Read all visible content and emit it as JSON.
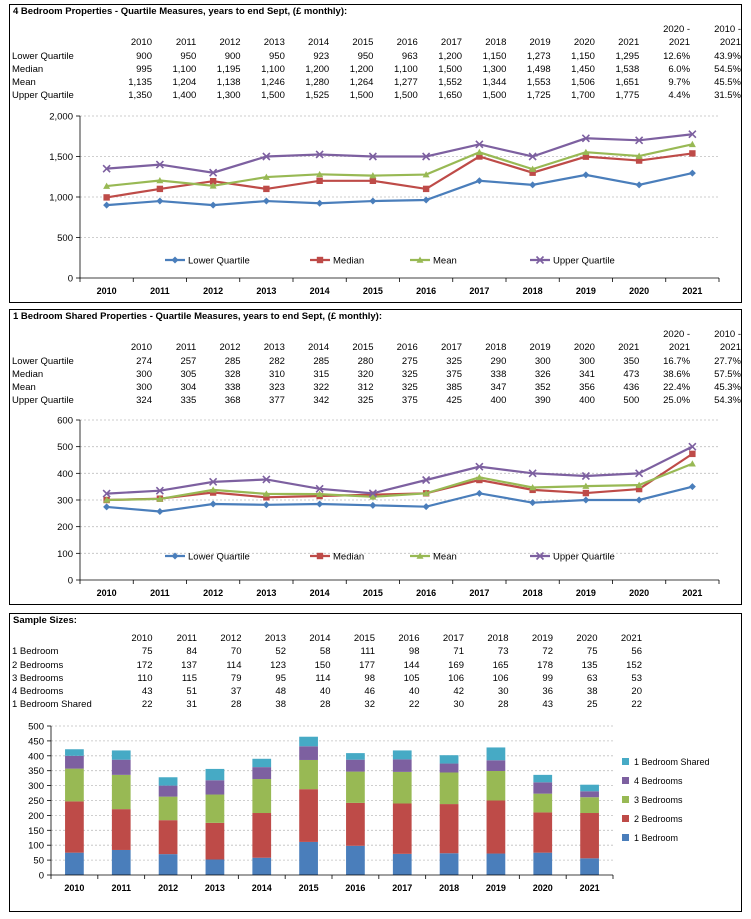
{
  "panels": [
    {
      "title": "4 Bedroom Properties - Quartile Measures, years to end Sept, (£ monthly):",
      "header_top": [
        "",
        "",
        "",
        "",
        "",
        "",
        "",
        "",
        "",
        "",
        "",
        "",
        "",
        "2020 -",
        "2010 -"
      ],
      "header": [
        "",
        "2010",
        "2011",
        "2012",
        "2013",
        "2014",
        "2015",
        "2016",
        "2017",
        "2018",
        "2019",
        "2020",
        "2021",
        "2021",
        "2021"
      ],
      "rows": [
        [
          "Lower Quartile",
          "900",
          "950",
          "900",
          "950",
          "923",
          "950",
          "963",
          "1,200",
          "1,150",
          "1,273",
          "1,150",
          "1,295",
          "12.6%",
          "43.9%"
        ],
        [
          "Median",
          "995",
          "1,100",
          "1,195",
          "1,100",
          "1,200",
          "1,200",
          "1,100",
          "1,500",
          "1,300",
          "1,498",
          "1,450",
          "1,538",
          "6.0%",
          "54.5%"
        ],
        [
          "Mean",
          "1,135",
          "1,204",
          "1,138",
          "1,246",
          "1,280",
          "1,264",
          "1,277",
          "1,552",
          "1,344",
          "1,553",
          "1,506",
          "1,651",
          "9.7%",
          "45.5%"
        ],
        [
          "Upper Quartile",
          "1,350",
          "1,400",
          "1,300",
          "1,500",
          "1,525",
          "1,500",
          "1,500",
          "1,650",
          "1,500",
          "1,725",
          "1,700",
          "1,775",
          "4.4%",
          "31.5%"
        ]
      ]
    },
    {
      "title": "1 Bedroom Shared Properties - Quartile Measures, years to end Sept, (£ monthly):",
      "header_top": [
        "",
        "",
        "",
        "",
        "",
        "",
        "",
        "",
        "",
        "",
        "",
        "",
        "",
        "2020 -",
        "2010 -"
      ],
      "header": [
        "",
        "2010",
        "2011",
        "2012",
        "2013",
        "2014",
        "2015",
        "2016",
        "2017",
        "2018",
        "2019",
        "2020",
        "2021",
        "2021",
        "2021"
      ],
      "rows": [
        [
          "Lower Quartile",
          "274",
          "257",
          "285",
          "282",
          "285",
          "280",
          "275",
          "325",
          "290",
          "300",
          "300",
          "350",
          "16.7%",
          "27.7%"
        ],
        [
          "Median",
          "300",
          "305",
          "328",
          "310",
          "315",
          "320",
          "325",
          "375",
          "338",
          "326",
          "341",
          "473",
          "38.6%",
          "57.5%"
        ],
        [
          "Mean",
          "300",
          "304",
          "338",
          "323",
          "322",
          "312",
          "325",
          "385",
          "347",
          "352",
          "356",
          "436",
          "22.4%",
          "45.3%"
        ],
        [
          "Upper Quartile",
          "324",
          "335",
          "368",
          "377",
          "342",
          "325",
          "375",
          "425",
          "400",
          "390",
          "400",
          "500",
          "25.0%",
          "54.3%"
        ]
      ]
    },
    {
      "title": "Sample Sizes:",
      "header": [
        "",
        "2010",
        "2011",
        "2012",
        "2013",
        "2014",
        "2015",
        "2016",
        "2017",
        "2018",
        "2019",
        "2020",
        "2021"
      ],
      "rows": [
        [
          "1 Bedroom",
          "75",
          "84",
          "70",
          "52",
          "58",
          "111",
          "98",
          "71",
          "73",
          "72",
          "75",
          "56"
        ],
        [
          "2 Bedrooms",
          "172",
          "137",
          "114",
          "123",
          "150",
          "177",
          "144",
          "169",
          "165",
          "178",
          "135",
          "152"
        ],
        [
          "3 Bedrooms",
          "110",
          "115",
          "79",
          "95",
          "114",
          "98",
          "105",
          "106",
          "106",
          "99",
          "63",
          "53"
        ],
        [
          "4 Bedrooms",
          "43",
          "51",
          "37",
          "48",
          "40",
          "46",
          "40",
          "42",
          "30",
          "36",
          "38",
          "20"
        ],
        [
          "1 Bedroom Shared",
          "22",
          "31",
          "28",
          "38",
          "28",
          "32",
          "22",
          "30",
          "28",
          "43",
          "25",
          "22"
        ]
      ]
    }
  ],
  "chart_data": [
    {
      "type": "line",
      "categories": [
        "2010",
        "2011",
        "2012",
        "2013",
        "2014",
        "2015",
        "2016",
        "2017",
        "2018",
        "2019",
        "2020",
        "2021"
      ],
      "ylim": [
        0,
        2000
      ],
      "yticks": [
        "0",
        "500",
        "1,000",
        "1,500",
        "2,000"
      ],
      "ytick_values": [
        0,
        500,
        1000,
        1500,
        2000
      ],
      "grid": true,
      "legend_position": "bottom-inside",
      "series": [
        {
          "name": "Lower Quartile",
          "color": "#4a7ebb",
          "marker": "diamond",
          "values": [
            900,
            950,
            900,
            950,
            923,
            950,
            963,
            1200,
            1150,
            1273,
            1150,
            1295
          ]
        },
        {
          "name": "Median",
          "color": "#be4b48",
          "marker": "square",
          "values": [
            995,
            1100,
            1195,
            1100,
            1200,
            1200,
            1100,
            1500,
            1300,
            1498,
            1450,
            1538
          ]
        },
        {
          "name": "Mean",
          "color": "#98b954",
          "marker": "triangle",
          "values": [
            1135,
            1204,
            1138,
            1246,
            1280,
            1264,
            1277,
            1552,
            1344,
            1553,
            1506,
            1651
          ]
        },
        {
          "name": "Upper Quartile",
          "color": "#7d60a0",
          "marker": "x",
          "values": [
            1350,
            1400,
            1300,
            1500,
            1525,
            1500,
            1500,
            1650,
            1500,
            1725,
            1700,
            1775
          ]
        }
      ]
    },
    {
      "type": "line",
      "categories": [
        "2010",
        "2011",
        "2012",
        "2013",
        "2014",
        "2015",
        "2016",
        "2017",
        "2018",
        "2019",
        "2020",
        "2021"
      ],
      "ylim": [
        0,
        600
      ],
      "yticks": [
        "0",
        "100",
        "200",
        "300",
        "400",
        "500",
        "600"
      ],
      "ytick_values": [
        0,
        100,
        200,
        300,
        400,
        500,
        600
      ],
      "grid": true,
      "legend_position": "bottom-inside",
      "series": [
        {
          "name": "Lower Quartile",
          "color": "#4a7ebb",
          "marker": "diamond",
          "values": [
            274,
            257,
            285,
            282,
            285,
            280,
            275,
            325,
            290,
            300,
            300,
            350
          ]
        },
        {
          "name": "Median",
          "color": "#be4b48",
          "marker": "square",
          "values": [
            300,
            305,
            328,
            310,
            315,
            320,
            325,
            375,
            338,
            326,
            341,
            473
          ]
        },
        {
          "name": "Mean",
          "color": "#98b954",
          "marker": "triangle",
          "values": [
            300,
            304,
            338,
            323,
            322,
            312,
            325,
            385,
            347,
            352,
            356,
            436
          ]
        },
        {
          "name": "Upper Quartile",
          "color": "#7d60a0",
          "marker": "x",
          "values": [
            324,
            335,
            368,
            377,
            342,
            325,
            375,
            425,
            400,
            390,
            400,
            500
          ]
        }
      ]
    },
    {
      "type": "bar",
      "stacked": true,
      "categories": [
        "2010",
        "2011",
        "2012",
        "2013",
        "2014",
        "2015",
        "2016",
        "2017",
        "2018",
        "2019",
        "2020",
        "2021"
      ],
      "ylim": [
        0,
        500
      ],
      "yticks": [
        "0",
        "50",
        "100",
        "150",
        "200",
        "250",
        "300",
        "350",
        "400",
        "450",
        "500"
      ],
      "ytick_values": [
        0,
        50,
        100,
        150,
        200,
        250,
        300,
        350,
        400,
        450,
        500
      ],
      "grid": true,
      "legend_position": "right",
      "series": [
        {
          "name": "1 Bedroom",
          "color": "#4a7ebb",
          "values": [
            75,
            84,
            70,
            52,
            58,
            111,
            98,
            71,
            73,
            72,
            75,
            56
          ]
        },
        {
          "name": "2 Bedrooms",
          "color": "#be4b48",
          "values": [
            172,
            137,
            114,
            123,
            150,
            177,
            144,
            169,
            165,
            178,
            135,
            152
          ]
        },
        {
          "name": "3 Bedrooms",
          "color": "#98b954",
          "values": [
            110,
            115,
            79,
            95,
            114,
            98,
            105,
            106,
            106,
            99,
            63,
            53
          ]
        },
        {
          "name": "4 Bedrooms",
          "color": "#7d60a0",
          "values": [
            43,
            51,
            37,
            48,
            40,
            46,
            40,
            42,
            30,
            36,
            38,
            20
          ]
        },
        {
          "name": "1 Bedroom Shared",
          "color": "#46aac5",
          "values": [
            22,
            31,
            28,
            38,
            28,
            32,
            22,
            30,
            28,
            43,
            25,
            22
          ]
        }
      ]
    }
  ]
}
